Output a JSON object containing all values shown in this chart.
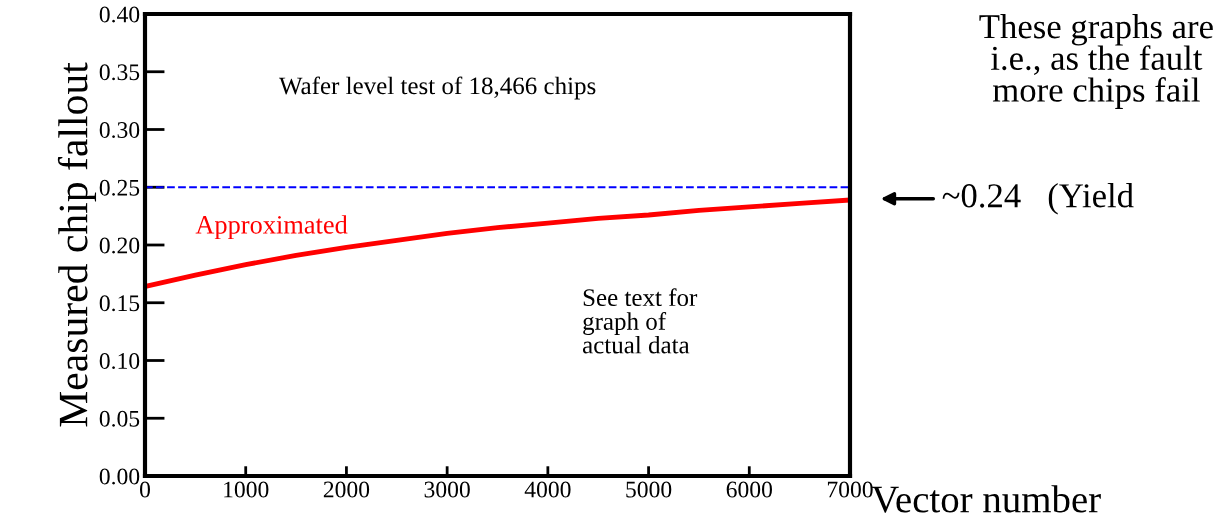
{
  "chart_data": {
    "type": "line",
    "x": [
      0,
      500,
      1000,
      1500,
      2000,
      2500,
      3000,
      3500,
      4000,
      4500,
      5000,
      5500,
      6000,
      6500,
      7000
    ],
    "series": [
      {
        "name": "Approximated",
        "color": "#ff0000",
        "values": [
          0.164,
          0.174,
          0.183,
          0.191,
          0.198,
          0.204,
          0.21,
          0.215,
          0.219,
          0.223,
          0.226,
          0.23,
          0.233,
          0.236,
          0.239
        ]
      }
    ],
    "xlabel": "Vector number",
    "ylabel": "Measured chip fallout",
    "xlim": [
      0,
      7000
    ],
    "xticks": [
      0,
      1000,
      2000,
      3000,
      4000,
      5000,
      6000,
      7000
    ],
    "ylim": [
      0,
      0.4
    ],
    "yticks": [
      {
        "value": 0,
        "label": "0.00"
      },
      {
        "value": 0.05,
        "label": "0.05"
      },
      {
        "value": 0.1,
        "label": "0.10"
      },
      {
        "value": 0.15,
        "label": "0.15"
      },
      {
        "value": 0.2,
        "label": "0.20"
      },
      {
        "value": 0.25,
        "label": "0.25"
      },
      {
        "value": 0.3,
        "label": "0.30"
      },
      {
        "value": 0.35,
        "label": "0.35"
      },
      {
        "value": 0.4,
        "label": "0.40"
      }
    ],
    "ref_lines": [
      {
        "axis": "y",
        "value": 0.25,
        "color": "#0000ff",
        "line_style": "dashed"
      }
    ],
    "annotations": [
      "Wafer level test of 18,466 chips",
      "See text for\ngraph of\nactual data",
      "These graphs are\ni.e., as the fault\nmore chips fail",
      {
        "text": "~0.24   (Yield",
        "x": 7000,
        "y": 0.24
      }
    ],
    "grid": false,
    "legend": false,
    "marker": "none",
    "line_style": "solid"
  }
}
